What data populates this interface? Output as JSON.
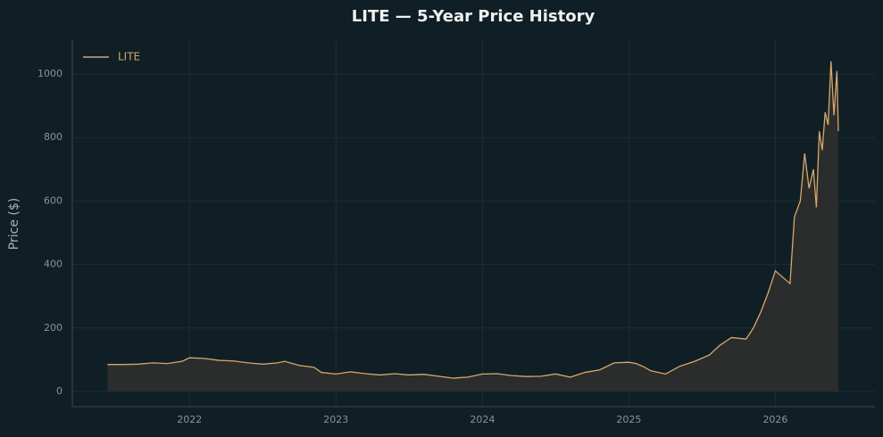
{
  "chart_data": {
    "type": "line",
    "title": "LITE — 5-Year Price History",
    "y_label": "Price ($)",
    "x": [
      2021.44,
      2021.55,
      2021.65,
      2021.75,
      2021.85,
      2021.95,
      2022.0,
      2022.1,
      2022.2,
      2022.3,
      2022.4,
      2022.5,
      2022.6,
      2022.65,
      2022.75,
      2022.85,
      2022.9,
      2023.0,
      2023.1,
      2023.2,
      2023.3,
      2023.4,
      2023.5,
      2023.6,
      2023.7,
      2023.8,
      2023.9,
      2024.0,
      2024.1,
      2024.2,
      2024.3,
      2024.4,
      2024.5,
      2024.6,
      2024.7,
      2024.8,
      2024.9,
      2025.0,
      2025.05,
      2025.1,
      2025.15,
      2025.25,
      2025.35,
      2025.45,
      2025.55,
      2025.62,
      2025.7,
      2025.8,
      2025.85,
      2025.9,
      2025.95,
      2026.0,
      2026.05,
      2026.1,
      2026.13,
      2026.17,
      2026.2,
      2026.23,
      2026.26,
      2026.28,
      2026.3,
      2026.32,
      2026.34,
      2026.36,
      2026.38,
      2026.4,
      2026.42,
      2026.43
    ],
    "series": [
      {
        "name": "LITE",
        "color": "#d9a66b",
        "fill": "#2d2f2e",
        "values": [
          85,
          85,
          86,
          90,
          88,
          95,
          106,
          104,
          98,
          96,
          90,
          86,
          90,
          95,
          82,
          76,
          60,
          55,
          62,
          56,
          52,
          56,
          52,
          54,
          48,
          42,
          45,
          55,
          56,
          50,
          47,
          48,
          55,
          45,
          60,
          68,
          90,
          92,
          88,
          78,
          65,
          55,
          80,
          95,
          115,
          145,
          170,
          165,
          200,
          250,
          310,
          380,
          360,
          340,
          550,
          600,
          750,
          640,
          700,
          580,
          820,
          760,
          880,
          840,
          1040,
          870,
          1010,
          820
        ]
      }
    ],
    "xlim": [
      2021.2,
      2026.68
    ],
    "xticks": [
      2022,
      2023,
      2024,
      2025,
      2026
    ],
    "ylim": [
      -48,
      1107
    ],
    "yticks": [
      0,
      200,
      400,
      600,
      800,
      1000
    ],
    "grid": true,
    "legend": "upper-left"
  }
}
